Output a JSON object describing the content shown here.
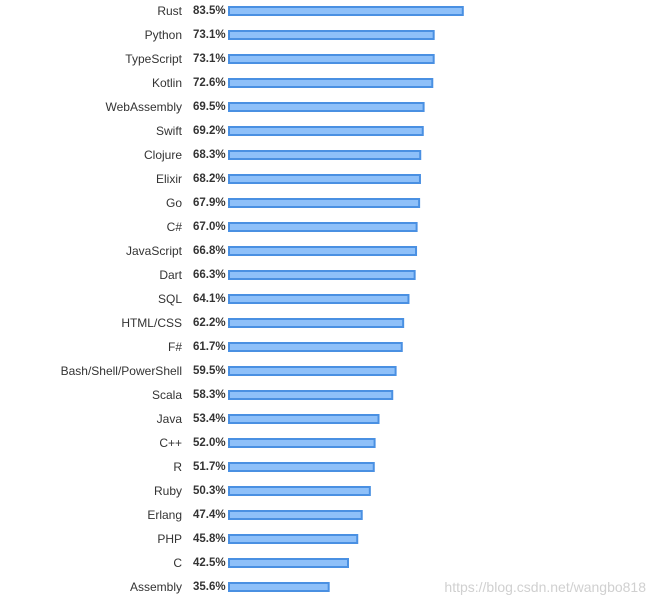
{
  "chart_data": {
    "type": "bar",
    "orientation": "horizontal",
    "title": "",
    "xlabel": "",
    "ylabel": "",
    "xlim": [
      0,
      100
    ],
    "grid": false,
    "legend": "none",
    "value_suffix": "%",
    "categories": [
      "Rust",
      "Python",
      "TypeScript",
      "Kotlin",
      "WebAssembly",
      "Swift",
      "Clojure",
      "Elixir",
      "Go",
      "C#",
      "JavaScript",
      "Dart",
      "SQL",
      "HTML/CSS",
      "F#",
      "Bash/Shell/PowerShell",
      "Scala",
      "Java",
      "C++",
      "R",
      "Ruby",
      "Erlang",
      "PHP",
      "C",
      "Assembly"
    ],
    "values": [
      83.5,
      73.1,
      73.1,
      72.6,
      69.5,
      69.2,
      68.3,
      68.2,
      67.9,
      67.0,
      66.8,
      66.3,
      64.1,
      62.2,
      61.7,
      59.5,
      58.3,
      53.4,
      52.0,
      51.7,
      50.3,
      47.4,
      45.8,
      42.5,
      35.6
    ],
    "labels": [
      "83.5%",
      "73.1%",
      "73.1%",
      "72.6%",
      "69.5%",
      "69.2%",
      "68.3%",
      "68.2%",
      "67.9%",
      "67.0%",
      "66.8%",
      "66.3%",
      "64.1%",
      "62.2%",
      "61.7%",
      "59.5%",
      "58.3%",
      "53.4%",
      "52.0%",
      "51.7%",
      "50.3%",
      "47.4%",
      "45.8%",
      "42.5%",
      "35.6%"
    ],
    "colors": {
      "bar_fill": "#8EC0F9",
      "bar_stroke": "#4A90E2",
      "text": "#333333"
    }
  },
  "watermark": {
    "text": "https://blog.csdn.net/wangbo818"
  }
}
